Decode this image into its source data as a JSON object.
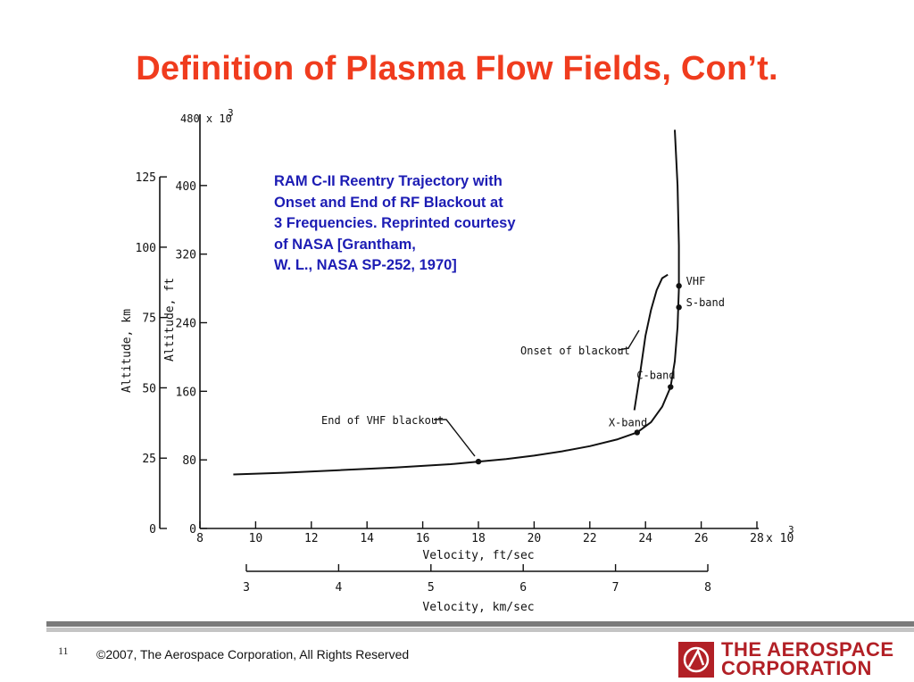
{
  "title": "Definition of Plasma Flow Fields, Con’t.",
  "caption": [
    "RAM C-II Reentry Trajectory with",
    "Onset and End of RF Blackout at",
    "3 Frequencies.  Reprinted courtesy",
    "of NASA [Grantham,",
    "W. L., NASA SP-252, 1970]"
  ],
  "footer": {
    "page_number": "11",
    "copyright": "©2007, The Aerospace Corporation, All Rights Reserved",
    "logo_line1": "THE AEROSPACE",
    "logo_line2": "CORPORATION"
  },
  "colors": {
    "title": "#f03c1e",
    "caption": "#1c1cb4",
    "logo": "#b22026"
  },
  "chart_data": {
    "type": "line",
    "xlabel": "Velocity, ft/sec",
    "x_multiplier": "x 10",
    "x_multiplier_exp": "3",
    "xlim": [
      8,
      28
    ],
    "x_ticks": [
      8,
      10,
      12,
      14,
      16,
      18,
      20,
      22,
      24,
      26,
      28
    ],
    "ylabel": "Altitude, ft",
    "y_multiplier": "480 x 10",
    "y_multiplier_exp": "3",
    "ylim": [
      0,
      480
    ],
    "y_ticks": [
      0,
      80,
      160,
      240,
      320,
      400
    ],
    "ylabel2": "Altitude, km",
    "y2_ticks": [
      0,
      25,
      50,
      75,
      100,
      125
    ],
    "xlabel2": "Velocity, km/sec",
    "x2_ticks": [
      3,
      4,
      5,
      6,
      7,
      8
    ],
    "series": [
      {
        "role": "trajectory",
        "x": [
          9.2,
          11,
          13,
          15,
          17,
          18,
          19,
          20,
          21,
          22,
          23,
          23.7,
          24.2,
          24.6,
          24.9,
          25.05,
          25.15,
          25.2,
          25.2,
          25.15,
          25.05
        ],
        "y": [
          63,
          65,
          68,
          71,
          75,
          78,
          81,
          85,
          90,
          96,
          104,
          112,
          124,
          142,
          165,
          195,
          235,
          280,
          330,
          400,
          465
        ]
      },
      {
        "role": "onset_of_blackout",
        "x": [
          23.6,
          23.8,
          24.0,
          24.2,
          24.4,
          24.6,
          24.8
        ],
        "y": [
          138,
          180,
          225,
          255,
          278,
          292,
          296
        ]
      }
    ],
    "points": [
      {
        "label": "VHF",
        "x": 25.2,
        "y": 283
      },
      {
        "label": "S-band",
        "x": 25.2,
        "y": 258
      },
      {
        "label": "C-band",
        "x": 24.9,
        "y": 165
      },
      {
        "label": "X-band",
        "x": 23.7,
        "y": 112
      },
      {
        "label": "End of VHF blackout",
        "x": 18,
        "y": 78
      }
    ],
    "annotations": [
      "Onset of blackout",
      "VHF",
      "S-band",
      "C-band",
      "X-band",
      "End of VHF blackout"
    ]
  }
}
